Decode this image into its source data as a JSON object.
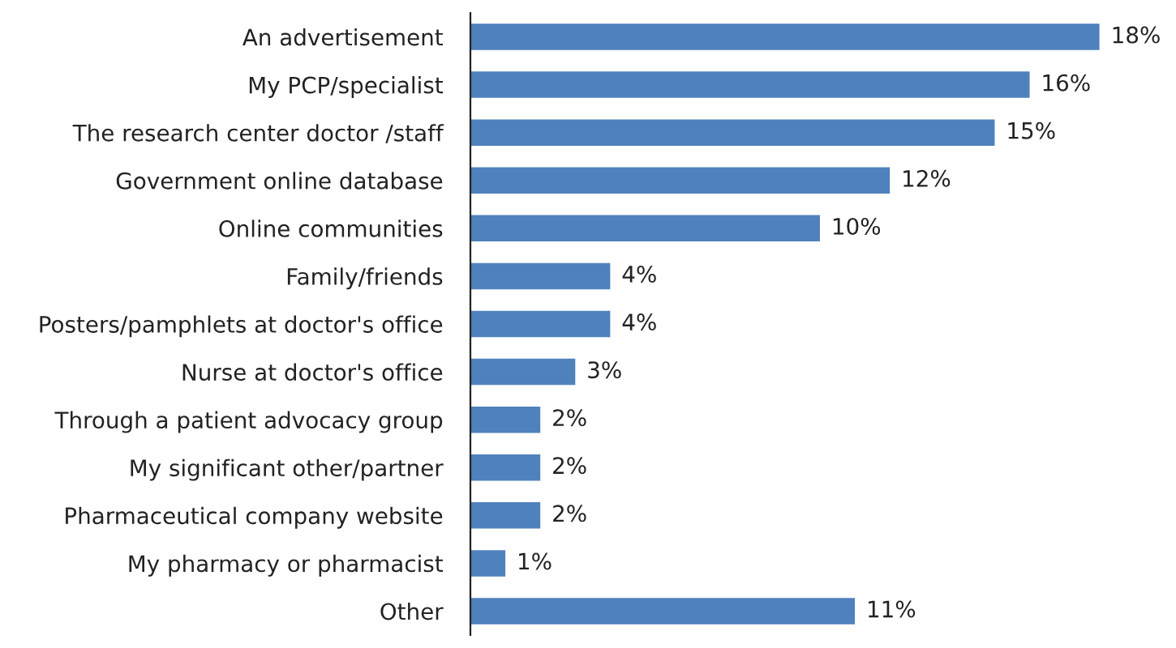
{
  "chart_data": {
    "type": "bar",
    "orientation": "horizontal",
    "categories": [
      "An advertisement",
      "My PCP/specialist",
      "The research center doctor /staff",
      "Government online database",
      "Online communities",
      "Family/friends",
      "Posters/pamphlets at doctor's office",
      "Nurse at doctor's office",
      "Through a patient advocacy group",
      "My significant other/partner",
      "Pharmaceutical company website",
      "My pharmacy or pharmacist",
      "Other"
    ],
    "values": [
      18,
      16,
      15,
      12,
      10,
      4,
      4,
      3,
      2,
      2,
      2,
      1,
      11
    ],
    "value_labels": [
      "18%",
      "16%",
      "15%",
      "12%",
      "10%",
      "4%",
      "4%",
      "3%",
      "2%",
      "2%",
      "2%",
      "1%",
      "11%"
    ],
    "color": "#4f81bd",
    "grid": false,
    "legend": false
  }
}
